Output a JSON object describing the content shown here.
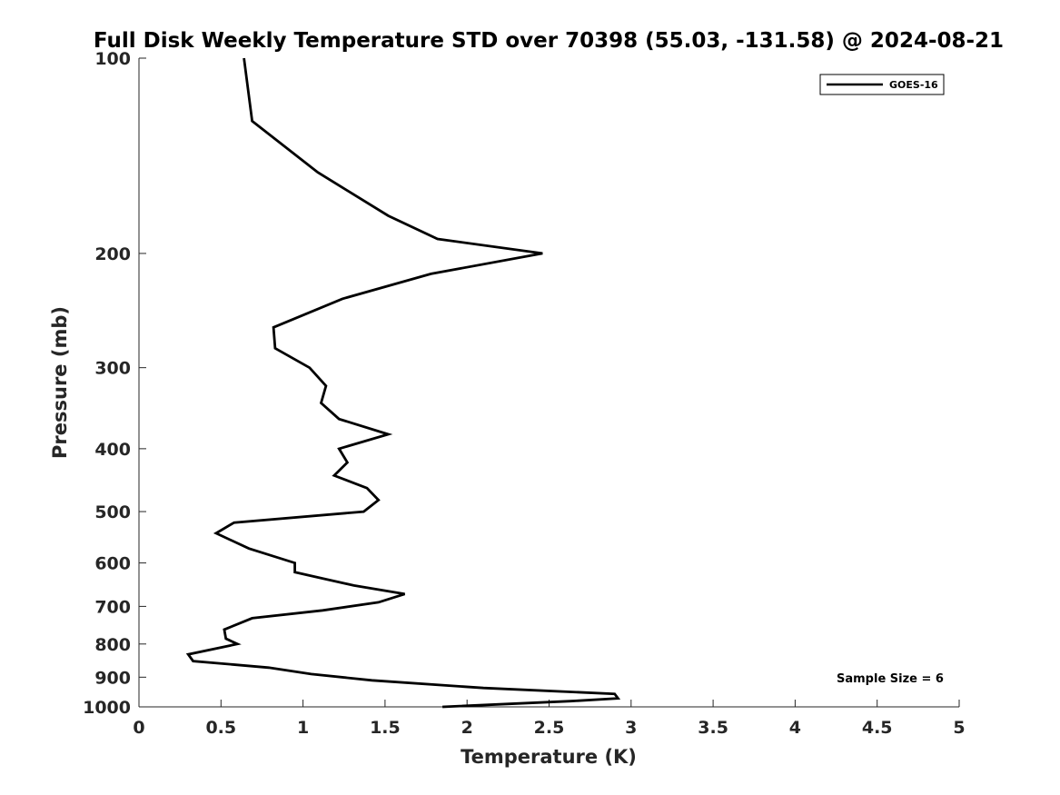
{
  "chart_data": {
    "type": "line",
    "title": "Full Disk Weekly Temperature STD over 70398 (55.03, -131.58) @ 2024-08-21",
    "xlabel": "Temperature (K)",
    "ylabel": "Pressure (mb)",
    "xlim": [
      0,
      5
    ],
    "ylim": [
      100,
      1000
    ],
    "y_scale": "log",
    "y_reversed": true,
    "x_ticks": [
      "0",
      "0.5",
      "1",
      "1.5",
      "2",
      "2.5",
      "3",
      "3.5",
      "4",
      "4.5",
      "5"
    ],
    "y_ticks": [
      "100",
      "200",
      "300",
      "400",
      "500",
      "600",
      "700",
      "800",
      "900",
      "1000"
    ],
    "grid": false,
    "legend_position": "top-right",
    "series": [
      {
        "name": "GOES-16",
        "color": "#000000",
        "points": [
          [
            0.64,
            100
          ],
          [
            0.69,
            125
          ],
          [
            1.09,
            150
          ],
          [
            1.52,
            175
          ],
          [
            1.82,
            190
          ],
          [
            2.46,
            200
          ],
          [
            1.78,
            215
          ],
          [
            1.24,
            235
          ],
          [
            0.82,
            260
          ],
          [
            0.83,
            280
          ],
          [
            1.04,
            300
          ],
          [
            1.14,
            320
          ],
          [
            1.11,
            340
          ],
          [
            1.22,
            360
          ],
          [
            1.52,
            380
          ],
          [
            1.22,
            400
          ],
          [
            1.27,
            420
          ],
          [
            1.19,
            440
          ],
          [
            1.39,
            460
          ],
          [
            1.46,
            480
          ],
          [
            1.37,
            500
          ],
          [
            0.58,
            520
          ],
          [
            0.47,
            540
          ],
          [
            0.67,
            570
          ],
          [
            0.95,
            600
          ],
          [
            0.95,
            620
          ],
          [
            1.31,
            650
          ],
          [
            1.62,
            670
          ],
          [
            1.46,
            690
          ],
          [
            1.12,
            710
          ],
          [
            0.69,
            730
          ],
          [
            0.52,
            760
          ],
          [
            0.53,
            785
          ],
          [
            0.6,
            800
          ],
          [
            0.3,
            830
          ],
          [
            0.33,
            850
          ],
          [
            0.79,
            870
          ],
          [
            1.05,
            890
          ],
          [
            1.42,
            910
          ],
          [
            2.1,
            935
          ],
          [
            2.9,
            955
          ],
          [
            2.92,
            970
          ],
          [
            2.63,
            980
          ],
          [
            1.85,
            1000
          ]
        ]
      }
    ],
    "annotation": "Sample Size = 6"
  }
}
